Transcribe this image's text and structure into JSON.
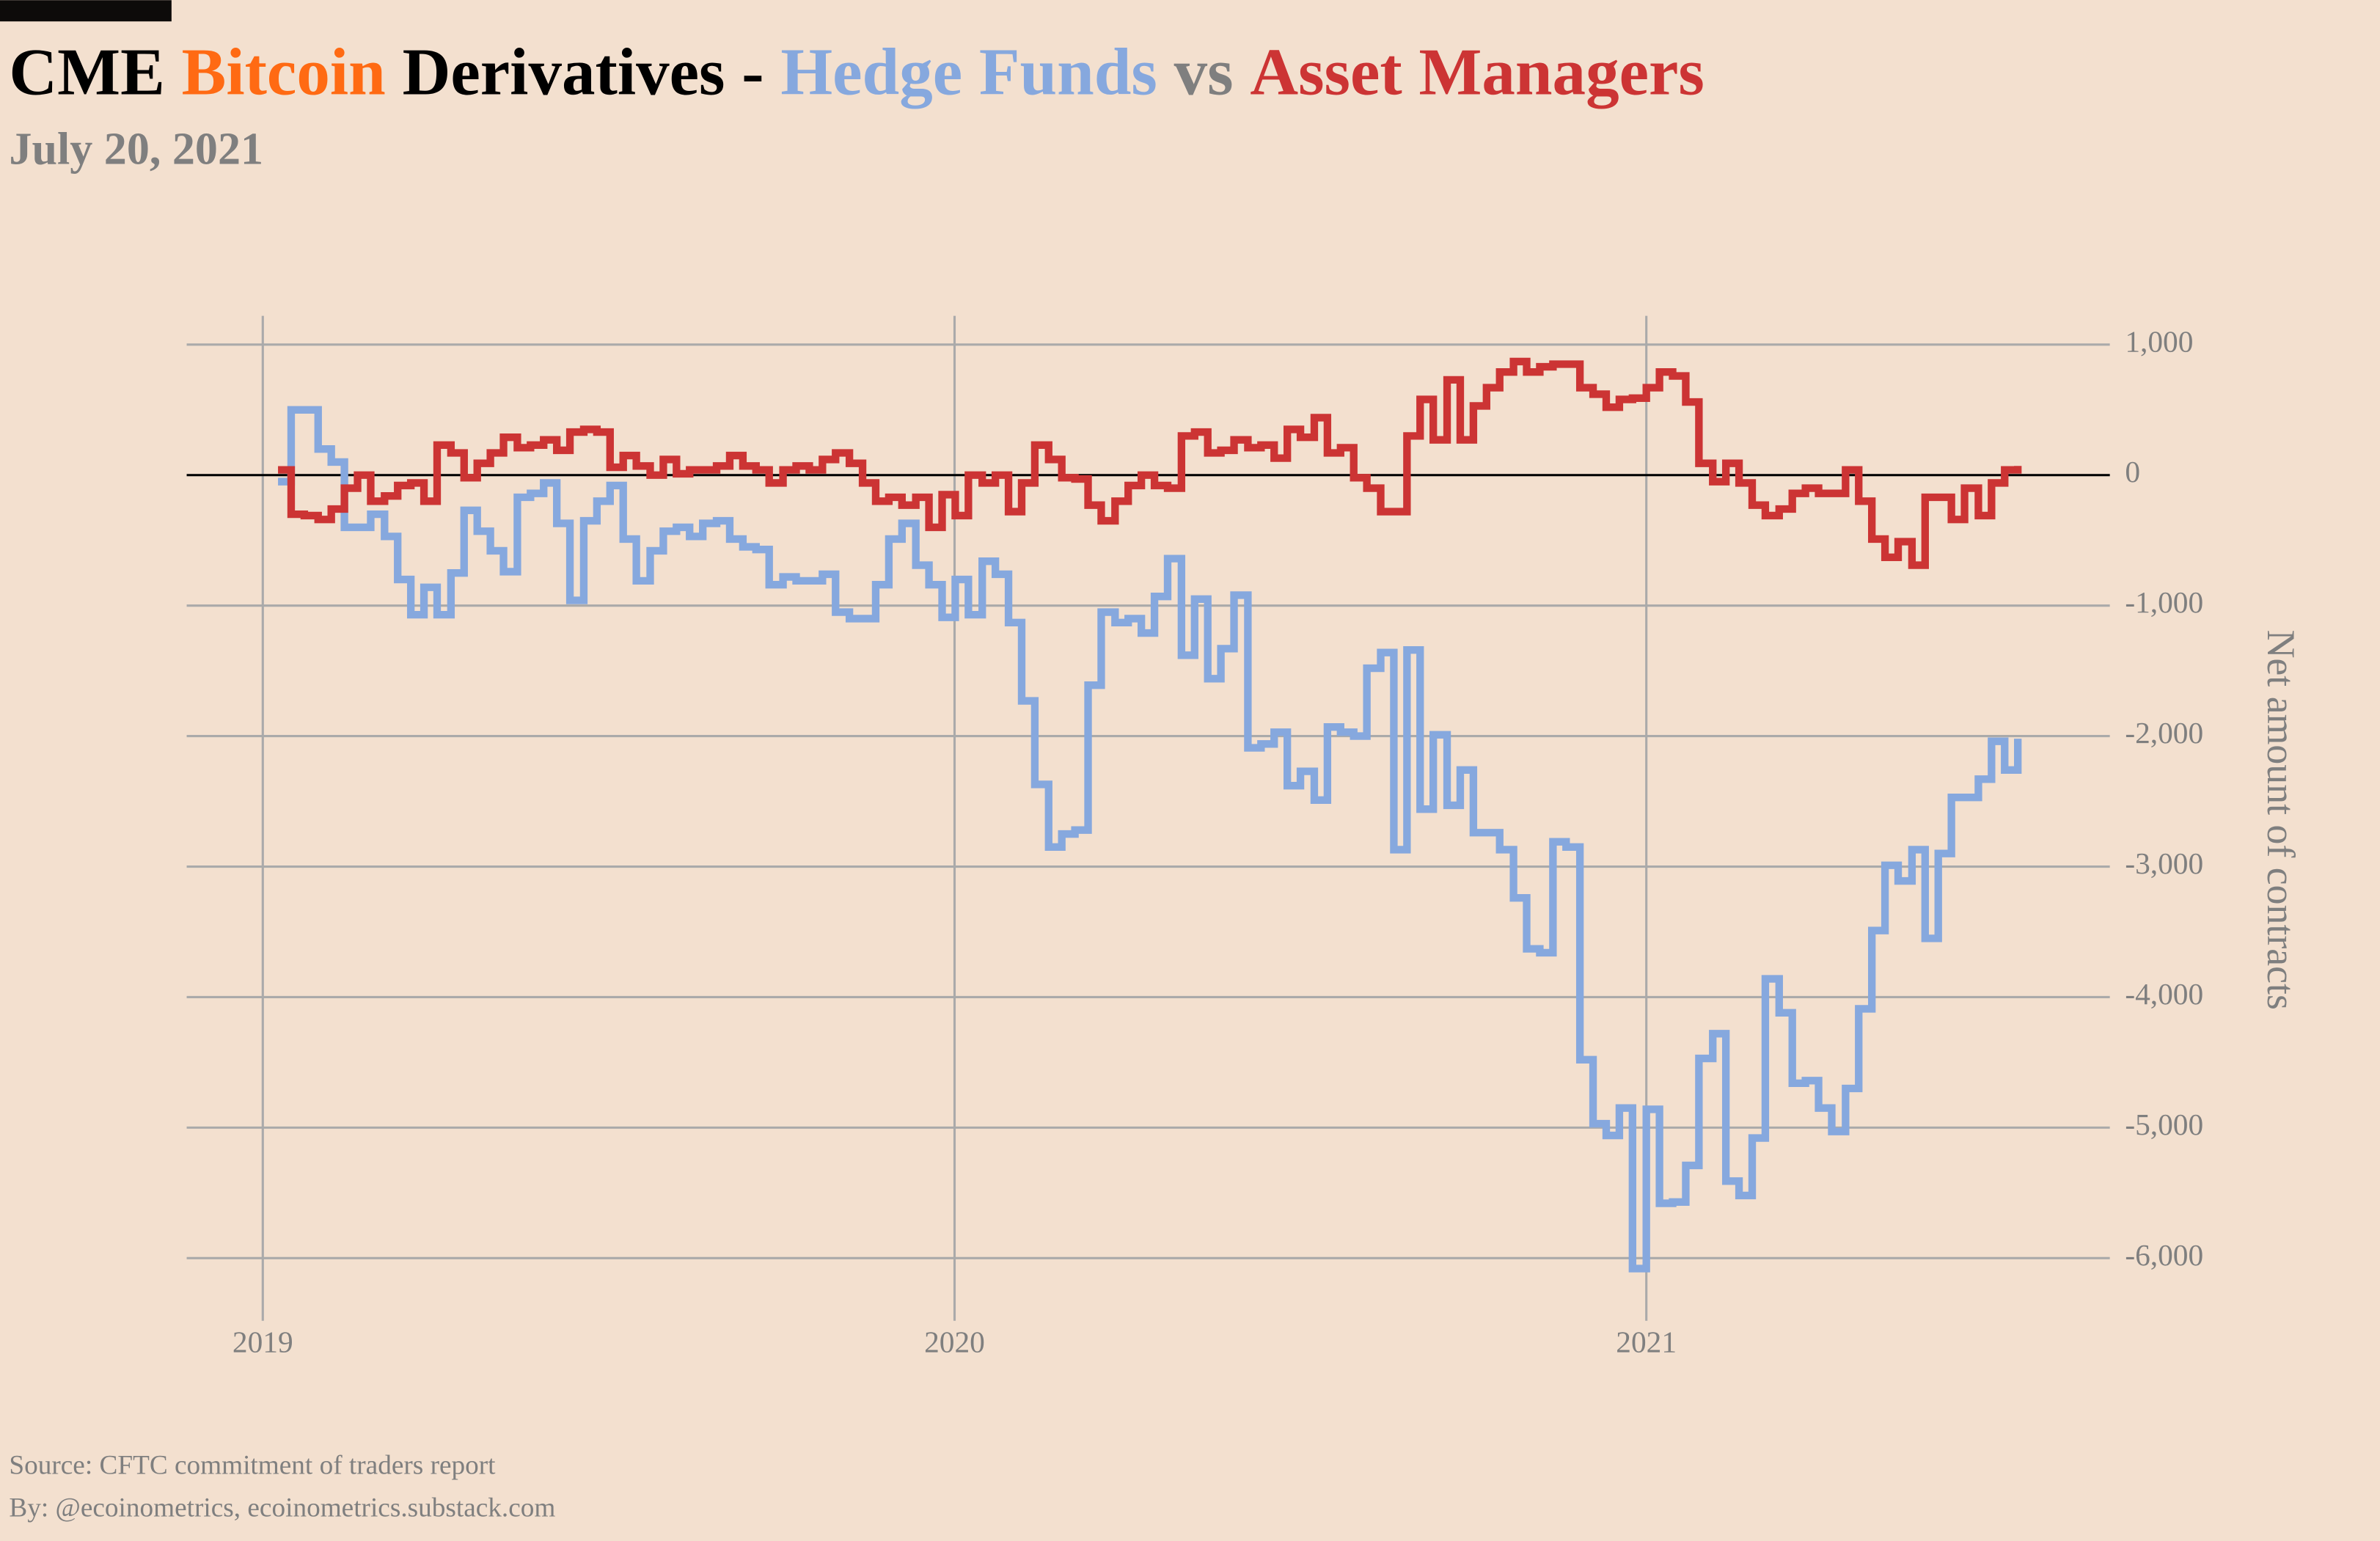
{
  "chart_data": {
    "type": "step",
    "title_parts": [
      {
        "text": "CME",
        "color": "#000000"
      },
      {
        "text": "Bitcoin",
        "color": "#ff6a13"
      },
      {
        "text": "Derivatives -",
        "color": "#000000"
      }
    ],
    "title_vs": {
      "text": "vs",
      "color": "#7f7f7f"
    },
    "subtitle": "July 20, 2021",
    "y_label": "Net amount of contracts",
    "source": "Source: CFTC commitment of traders report",
    "byline": "By: @ecoinometrics, ecoinometrics.substack.com",
    "x": [
      2019.022,
      2019.041,
      2019.06,
      2019.08,
      2019.099,
      2019.118,
      2019.137,
      2019.156,
      2019.176,
      2019.195,
      2019.214,
      2019.233,
      2019.252,
      2019.272,
      2019.291,
      2019.31,
      2019.329,
      2019.348,
      2019.368,
      2019.387,
      2019.406,
      2019.425,
      2019.444,
      2019.464,
      2019.483,
      2019.502,
      2019.521,
      2019.54,
      2019.56,
      2019.579,
      2019.598,
      2019.617,
      2019.636,
      2019.656,
      2019.675,
      2019.694,
      2019.713,
      2019.732,
      2019.752,
      2019.771,
      2019.79,
      2019.809,
      2019.828,
      2019.848,
      2019.867,
      2019.886,
      2019.905,
      2019.924,
      2019.944,
      2019.963,
      2019.982,
      2020.001,
      2020.02,
      2020.04,
      2020.059,
      2020.078,
      2020.097,
      2020.116,
      2020.136,
      2020.155,
      2020.174,
      2020.193,
      2020.212,
      2020.232,
      2020.251,
      2020.27,
      2020.289,
      2020.308,
      2020.328,
      2020.347,
      2020.366,
      2020.385,
      2020.404,
      2020.424,
      2020.443,
      2020.462,
      2020.481,
      2020.5,
      2020.52,
      2020.539,
      2020.558,
      2020.577,
      2020.596,
      2020.616,
      2020.635,
      2020.654,
      2020.673,
      2020.692,
      2020.712,
      2020.731,
      2020.75,
      2020.769,
      2020.788,
      2020.808,
      2020.827,
      2020.846,
      2020.865,
      2020.884,
      2020.904,
      2020.923,
      2020.942,
      2020.961,
      2020.98,
      2021.0,
      2021.019,
      2021.038,
      2021.057,
      2021.076,
      2021.096,
      2021.115,
      2021.134,
      2021.153,
      2021.172,
      2021.192,
      2021.211,
      2021.23,
      2021.249,
      2021.268,
      2021.288,
      2021.307,
      2021.326,
      2021.345,
      2021.364,
      2021.384,
      2021.403,
      2021.422,
      2021.441,
      2021.46,
      2021.48,
      2021.499,
      2021.518,
      2021.537
    ],
    "series": [
      {
        "name": "Hedge Funds",
        "color": "#86a8de",
        "values": [
          -50,
          500,
          500,
          200,
          100,
          -400,
          -400,
          -300,
          -470,
          -800,
          -1070,
          -860,
          -1070,
          -750,
          -270,
          -430,
          -580,
          -740,
          -170,
          -140,
          -60,
          -370,
          -960,
          -350,
          -200,
          -80,
          -490,
          -810,
          -580,
          -430,
          -400,
          -470,
          -370,
          -350,
          -490,
          -550,
          -570,
          -840,
          -780,
          -810,
          -810,
          -760,
          -1050,
          -1100,
          -1100,
          -840,
          -490,
          -370,
          -690,
          -840,
          -1090,
          -800,
          -1070,
          -660,
          -760,
          -1130,
          -1730,
          -2370,
          -2850,
          -2750,
          -2720,
          -1610,
          -1050,
          -1130,
          -1100,
          -1210,
          -930,
          -640,
          -1380,
          -950,
          -1560,
          -1330,
          -920,
          -2090,
          -2060,
          -1970,
          -2380,
          -2270,
          -2490,
          -1930,
          -1970,
          -2000,
          -1480,
          -1360,
          -2870,
          -1340,
          -2560,
          -1990,
          -2530,
          -2260,
          -2740,
          -2740,
          -2870,
          -3240,
          -3630,
          -3660,
          -2810,
          -2850,
          -4480,
          -4970,
          -5060,
          -4850,
          -6080,
          -4860,
          -5580,
          -5570,
          -5290,
          -4470,
          -4280,
          -5410,
          -5520,
          -5080,
          -3860,
          -4120,
          -4660,
          -4640,
          -4850,
          -5030,
          -4700,
          -4090,
          -3490,
          -2990,
          -3110,
          -2870,
          -3550,
          -2900,
          -2470,
          -2470,
          -2330,
          -2040,
          -2260,
          -2020
        ]
      },
      {
        "name": "Asset Managers",
        "color": "#cc3434",
        "values": [
          40,
          -300,
          -310,
          -340,
          -260,
          -100,
          0,
          -200,
          -160,
          -80,
          -60,
          -200,
          230,
          170,
          -20,
          90,
          170,
          290,
          210,
          230,
          270,
          190,
          330,
          350,
          330,
          60,
          150,
          70,
          0,
          120,
          10,
          40,
          40,
          70,
          150,
          70,
          40,
          -60,
          40,
          70,
          40,
          120,
          170,
          90,
          -60,
          -200,
          -170,
          -230,
          -170,
          -400,
          -150,
          -310,
          0,
          -60,
          0,
          -280,
          -60,
          230,
          120,
          -20,
          -30,
          -230,
          -350,
          -200,
          -80,
          0,
          -80,
          -100,
          300,
          330,
          170,
          190,
          270,
          210,
          230,
          130,
          350,
          290,
          440,
          170,
          210,
          -20,
          -100,
          -280,
          -280,
          300,
          580,
          270,
          730,
          270,
          530,
          670,
          790,
          870,
          790,
          830,
          850,
          850,
          670,
          620,
          520,
          580,
          590,
          670,
          790,
          760,
          560,
          90,
          -50,
          90,
          -60,
          -230,
          -310,
          -260,
          -140,
          -100,
          -140,
          -140,
          40,
          -200,
          -490,
          -630,
          -510,
          -690,
          -170,
          -170,
          -340,
          -100,
          -310,
          -60,
          40,
          70
        ]
      }
    ],
    "xlim": [
      2018.89,
      2021.67
    ],
    "xticks": [
      2019,
      2020,
      2021
    ],
    "ylim": [
      -6480,
      1220
    ],
    "yticks": [
      {
        "value": 1000,
        "label": "1,000"
      },
      0,
      {
        "value": -1000,
        "label": "-1,000"
      },
      {
        "value": -2000,
        "label": "-2,000"
      },
      {
        "value": -3000,
        "label": "-3,000"
      },
      {
        "value": -4000,
        "label": "-4,000"
      },
      {
        "value": -5000,
        "label": "-5,000"
      },
      {
        "value": -6000,
        "label": "-6,000"
      }
    ],
    "grid": true,
    "zero_line": true
  }
}
